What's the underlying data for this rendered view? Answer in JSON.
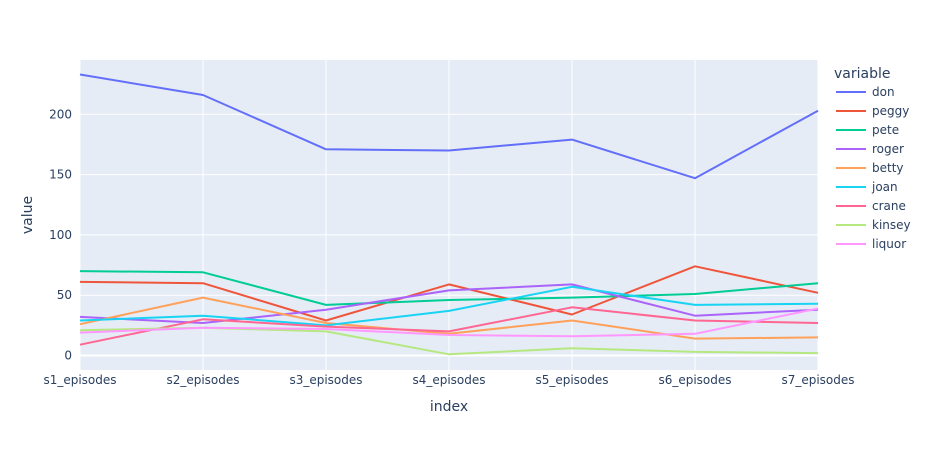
{
  "chart_data": {
    "type": "line",
    "xlabel": "index",
    "ylabel": "value",
    "ylim": [
      -12,
      245
    ],
    "yticks": [
      0,
      50,
      100,
      150,
      200
    ],
    "grid": true,
    "legend_title": "variable",
    "legend_position": "right",
    "plot_bg": "#e5ecf6",
    "categories": [
      "s1_episodes",
      "s2_episodes",
      "s3_episodes",
      "s4_episodes",
      "s5_episodes",
      "s6_episodes",
      "s7_episodes"
    ],
    "series": [
      {
        "name": "don",
        "color": "#636efa",
        "values": [
          233,
          216,
          171,
          170,
          179,
          147,
          203
        ]
      },
      {
        "name": "peggy",
        "color": "#ef553b",
        "values": [
          61,
          60,
          29,
          59,
          34,
          74,
          52
        ]
      },
      {
        "name": "pete",
        "color": "#00cc96",
        "values": [
          70,
          69,
          42,
          46,
          48,
          51,
          60
        ]
      },
      {
        "name": "roger",
        "color": "#ab63fa",
        "values": [
          32,
          27,
          38,
          54,
          59,
          33,
          38
        ]
      },
      {
        "name": "betty",
        "color": "#ffa15a",
        "values": [
          26,
          48,
          27,
          18,
          29,
          14,
          15
        ]
      },
      {
        "name": "joan",
        "color": "#19d3f3",
        "values": [
          29,
          33,
          25,
          37,
          57,
          42,
          43
        ]
      },
      {
        "name": "crane",
        "color": "#ff6692",
        "values": [
          9,
          30,
          24,
          20,
          40,
          29,
          27
        ]
      },
      {
        "name": "kinsey",
        "color": "#b6e880",
        "values": [
          21,
          23,
          20,
          1,
          6,
          3,
          2
        ]
      },
      {
        "name": "liquor",
        "color": "#ff97ff",
        "values": [
          19,
          23,
          22,
          17,
          16,
          18,
          39
        ]
      }
    ]
  }
}
